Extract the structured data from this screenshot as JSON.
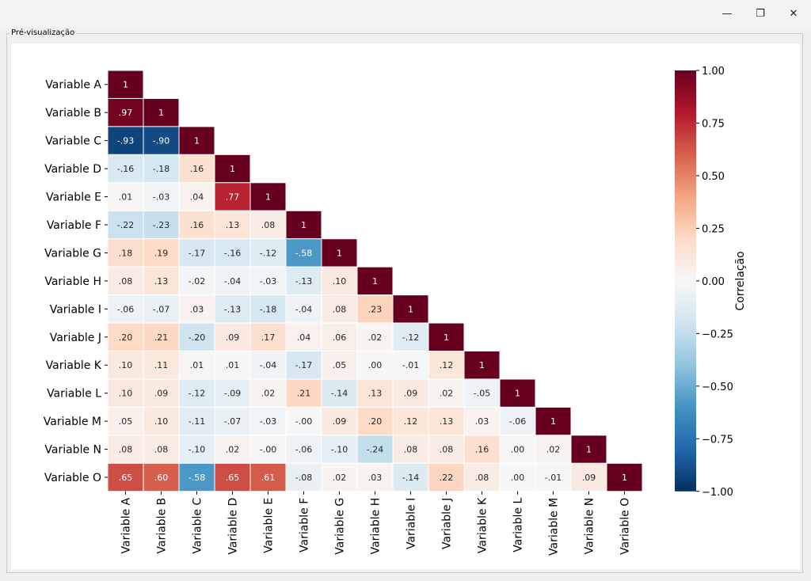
{
  "window": {
    "minimize_glyph": "—",
    "maximize_glyph": "❐",
    "close_glyph": "✕"
  },
  "group_label": "Pré-visualização",
  "chart_data": {
    "type": "heatmap",
    "variant": "lower-triangle correlation matrix",
    "labels": [
      "Variable A",
      "Variable B",
      "Variable C",
      "Variable D",
      "Variable E",
      "Variable F",
      "Variable G",
      "Variable H",
      "Variable I",
      "Variable J",
      "Variable K",
      "Variable L",
      "Variable M",
      "Variable N",
      "Variable O"
    ],
    "matrix": [
      [
        1
      ],
      [
        0.97,
        1
      ],
      [
        -0.93,
        -0.9,
        1
      ],
      [
        -0.16,
        -0.18,
        0.16,
        1
      ],
      [
        0.01,
        -0.03,
        0.04,
        0.77,
        1
      ],
      [
        -0.22,
        -0.23,
        0.16,
        0.13,
        0.08,
        1
      ],
      [
        0.18,
        0.19,
        -0.17,
        -0.16,
        -0.12,
        -0.58,
        1
      ],
      [
        0.08,
        0.13,
        -0.02,
        -0.04,
        -0.03,
        -0.13,
        0.1,
        1
      ],
      [
        -0.06,
        -0.07,
        0.03,
        -0.13,
        -0.18,
        -0.04,
        0.08,
        0.23,
        1
      ],
      [
        0.2,
        0.21,
        -0.2,
        0.09,
        0.17,
        0.04,
        0.06,
        0.02,
        -0.12,
        1
      ],
      [
        0.1,
        0.11,
        0.01,
        0.01,
        -0.04,
        -0.17,
        0.05,
        0.0,
        -0.01,
        0.12,
        1
      ],
      [
        0.1,
        0.09,
        -0.12,
        -0.09,
        0.02,
        0.21,
        -0.14,
        0.13,
        0.09,
        0.02,
        -0.05,
        1
      ],
      [
        0.05,
        0.1,
        -0.11,
        -0.07,
        -0.03,
        -0.0,
        0.09,
        0.2,
        0.12,
        0.13,
        0.03,
        -0.06,
        1
      ],
      [
        0.08,
        0.08,
        -0.1,
        0.02,
        -0.0,
        -0.06,
        -0.1,
        -0.24,
        0.08,
        0.08,
        0.16,
        0.0,
        0.02,
        1
      ],
      [
        0.65,
        0.6,
        -0.58,
        0.65,
        0.61,
        -0.08,
        0.02,
        0.03,
        -0.14,
        0.22,
        0.08,
        0.0,
        -0.01,
        0.09,
        1
      ]
    ],
    "colorbar": {
      "label": "Correlação",
      "min": -1.0,
      "max": 1.0,
      "ticks": [
        1.0,
        0.75,
        0.5,
        0.25,
        0.0,
        -0.25,
        -0.5,
        -0.75,
        -1.0
      ],
      "tick_labels": [
        "1.00",
        "0.75",
        "0.50",
        "0.25",
        "0.00",
        "−0.25",
        "−0.50",
        "−0.75",
        "−1.00"
      ],
      "colormap": "RdBu_r"
    },
    "colors": {
      "high": "#67001f",
      "mid": "#f7f7f7",
      "low": "#053061"
    }
  }
}
